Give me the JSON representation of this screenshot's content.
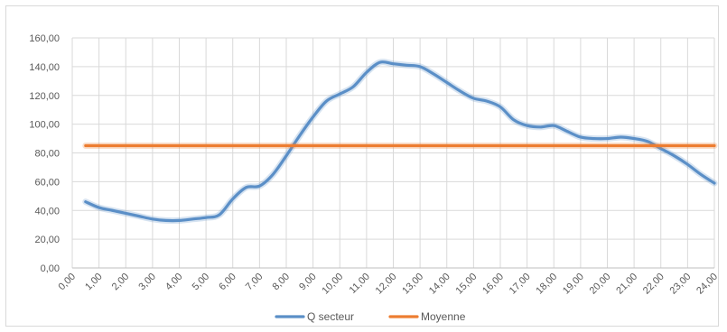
{
  "chart_data": {
    "type": "line",
    "title": "",
    "xlabel": "",
    "ylabel": "",
    "xlim": [
      0,
      24
    ],
    "ylim": [
      0,
      160
    ],
    "ytick_step": 20,
    "ytick_labels": [
      "0,00",
      "20,00",
      "40,00",
      "60,00",
      "80,00",
      "100,00",
      "120,00",
      "140,00",
      "160,00"
    ],
    "xtick_labels": [
      "0,00",
      "1,00",
      "2,00",
      "3,00",
      "4,00",
      "5,00",
      "6,00",
      "7,00",
      "8,00",
      "9,00",
      "10,00",
      "11,00",
      "12,00",
      "13,00",
      "14,00",
      "15,00",
      "16,00",
      "17,00",
      "18,00",
      "19,00",
      "20,00",
      "21,00",
      "22,00",
      "23,00",
      "24,00"
    ],
    "grid": true,
    "legend_position": "bottom",
    "series": [
      {
        "name": "Q secteur",
        "color": "#5b8fc7",
        "x": [
          0.5,
          1.0,
          1.5,
          2.0,
          2.5,
          3.0,
          3.5,
          4.0,
          4.5,
          5.0,
          5.5,
          6.0,
          6.5,
          7.0,
          7.5,
          8.0,
          8.5,
          9.0,
          9.5,
          10.0,
          10.5,
          11.0,
          11.5,
          12.0,
          12.5,
          13.0,
          13.5,
          14.0,
          14.5,
          15.0,
          15.5,
          16.0,
          16.5,
          17.0,
          17.5,
          18.0,
          18.5,
          19.0,
          19.5,
          20.0,
          20.5,
          21.0,
          21.5,
          22.0,
          22.5,
          23.0,
          23.5,
          24.0
        ],
        "y": [
          46,
          42,
          40,
          38,
          36,
          34,
          33,
          33,
          34,
          35,
          37,
          48,
          56,
          57,
          65,
          78,
          92,
          105,
          116,
          121,
          126,
          136,
          143,
          142,
          141,
          140,
          135,
          129,
          123,
          118,
          116,
          112,
          103,
          99,
          98,
          99,
          95,
          91,
          90,
          90,
          91,
          90,
          88,
          83,
          78,
          72,
          65,
          59
        ]
      },
      {
        "name": "Moyenne",
        "color": "#ed7d31",
        "x": [
          0.5,
          24.0
        ],
        "y": [
          85,
          85
        ]
      }
    ]
  }
}
